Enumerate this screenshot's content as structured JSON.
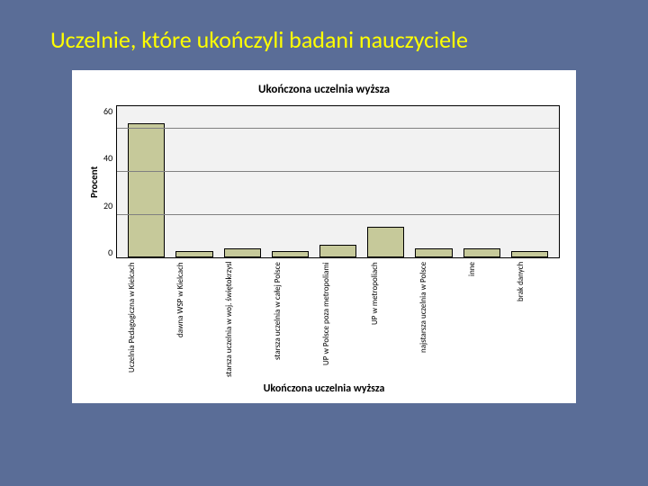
{
  "slide": {
    "background_color": "#5a6d97",
    "title": "Uczelnie, które ukończyli badani nauczyciele",
    "title_color": "#ffff00",
    "title_fontsize": 26
  },
  "chart": {
    "type": "bar",
    "title": "Ukończona uczelnia wyższa",
    "title_fontsize": 13,
    "title_fontweight": 700,
    "ylabel": "Procent",
    "xlabel": "Ukończona uczelnia wyższa",
    "label_fontsize": 12,
    "background_color": "#ffffff",
    "plot_background_color": "#f2f2f2",
    "grid_color": "#808080",
    "border_color": "#000000",
    "bar_fill": "#c6c99a",
    "bar_border": "#000000",
    "ylim": [
      0,
      70
    ],
    "yticks": [
      60,
      40,
      20,
      0
    ],
    "categories": [
      "Uczelnia Pedagogiczna w Kielcach",
      "dawna WSP w Kielcach",
      "starsza uczelnia w woj. świętokrzyskim",
      "starsza uczelnia w całej Polsce",
      "UP w Polsce poza metropoliami",
      "UP w metropoliach",
      "najstarsza uczelnia w Polsce",
      "inne",
      "brak danych"
    ],
    "values": [
      62,
      3,
      4,
      3,
      6,
      14,
      4,
      4,
      3
    ]
  }
}
